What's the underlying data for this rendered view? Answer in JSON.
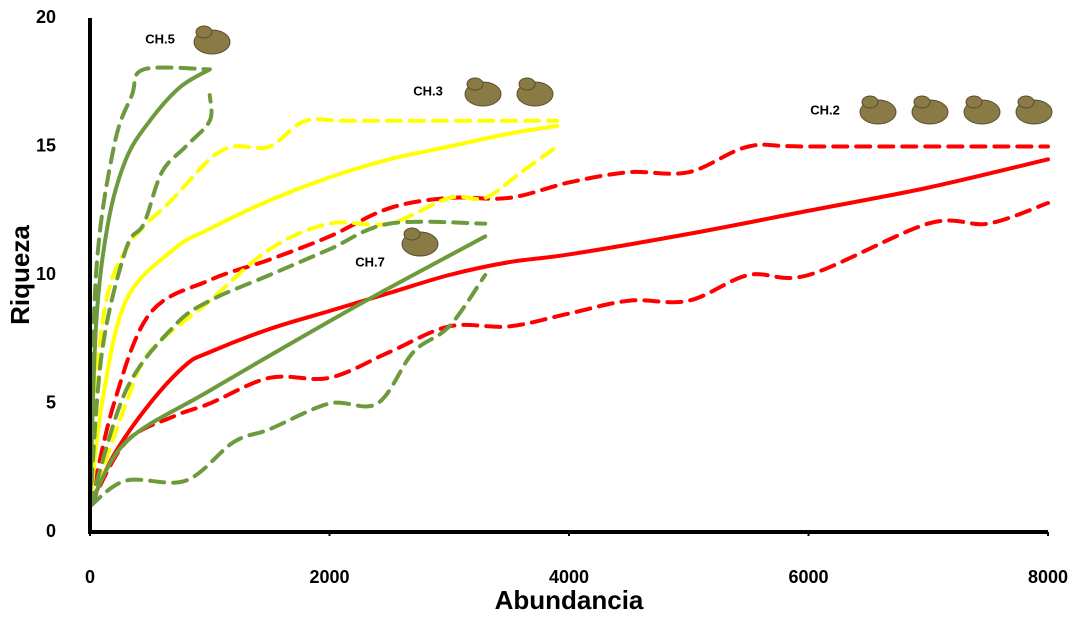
{
  "chart_data": {
    "type": "line",
    "x_label": "Abundancia",
    "y_label": "Riqueza",
    "annotations": [
      "CH.5",
      "CH.3",
      "CH.2",
      "CH.7"
    ],
    "xlim": [
      0,
      8000
    ],
    "xticks": [
      0,
      2000,
      4000,
      6000,
      8000
    ],
    "ylim": [
      0,
      20
    ],
    "yticks": [
      0,
      5,
      10,
      15,
      20
    ],
    "grid": false,
    "series": [
      {
        "color": "#ff0000",
        "dash": false,
        "x": [
          0,
          200,
          500,
          800,
          1000,
          1500,
          2000,
          2500,
          3000,
          3500,
          4000,
          5000,
          6000,
          7000,
          8000
        ],
        "values": [
          1,
          3,
          5,
          6.5,
          7,
          7.9,
          8.6,
          9.3,
          10,
          10.5,
          10.8,
          11.6,
          12.5,
          13.4,
          14.5
        ]
      },
      {
        "color": "#ff0000",
        "dash": true,
        "x": [
          0,
          200,
          500,
          1000,
          1500,
          2000,
          2500,
          3000,
          3500,
          4000,
          4500,
          5000,
          5500,
          6000,
          8000
        ],
        "values": [
          1,
          5,
          8.5,
          9.8,
          10.6,
          11.5,
          12.6,
          13,
          13,
          13.6,
          14,
          14,
          15,
          15,
          15
        ]
      },
      {
        "color": "#ff0000",
        "dash": true,
        "x": [
          0,
          300,
          700,
          1000,
          1500,
          2000,
          2500,
          3000,
          3500,
          4000,
          4500,
          5000,
          5500,
          6000,
          7000,
          7500,
          8000
        ],
        "values": [
          1,
          3.5,
          4.5,
          5,
          6,
          6,
          7,
          8,
          8,
          8.5,
          9,
          9,
          10,
          10,
          12,
          12,
          12.8
        ]
      },
      {
        "color": "#ffff00",
        "dash": false,
        "x": [
          0,
          100,
          300,
          700,
          1000,
          1500,
          2000,
          2500,
          3000,
          3500,
          3900
        ],
        "values": [
          1,
          5,
          9,
          11,
          11.8,
          12.9,
          13.8,
          14.5,
          15,
          15.5,
          15.8
        ]
      },
      {
        "color": "#ffff00",
        "dash": true,
        "x": [
          0,
          100,
          300,
          700,
          1000,
          1200,
          1500,
          1800,
          2200,
          3900
        ],
        "values": [
          1,
          8,
          11,
          13,
          14.5,
          15,
          15,
          16,
          16,
          16
        ]
      },
      {
        "color": "#ffff00",
        "dash": true,
        "x": [
          0,
          300,
          500,
          1000,
          1500,
          2000,
          2500,
          3000,
          3300,
          3600,
          3900
        ],
        "values": [
          1,
          5,
          7,
          9,
          11,
          12,
          12,
          13,
          13,
          14,
          15
        ]
      },
      {
        "color": "#6e9a3e",
        "dash": false,
        "x": [
          0,
          50,
          150,
          300,
          500,
          750,
          1000
        ],
        "values": [
          1,
          8,
          12,
          14.5,
          16,
          17.3,
          18
        ]
      },
      {
        "color": "#6e9a3e",
        "dash": true,
        "x": [
          0,
          50,
          200,
          350,
          450,
          1000
        ],
        "values": [
          1,
          10,
          15,
          17,
          18,
          18
        ]
      },
      {
        "color": "#6e9a3e",
        "dash": true,
        "x": [
          0,
          100,
          300,
          450,
          600,
          800,
          1000,
          1000
        ],
        "values": [
          1,
          7,
          11,
          12,
          14,
          15,
          16,
          17
        ]
      },
      {
        "color": "#6e9a3e",
        "dash": false,
        "x": [
          0,
          300,
          1000,
          2000,
          2500,
          3300
        ],
        "values": [
          1,
          3.5,
          5.5,
          8.2,
          9.5,
          11.5
        ]
      },
      {
        "color": "#6e9a3e",
        "dash": true,
        "x": [
          0,
          300,
          700,
          1000,
          1500,
          2000,
          2500,
          3300
        ],
        "values": [
          1,
          5.5,
          8,
          9,
          10,
          11,
          12,
          12
        ]
      },
      {
        "color": "#6e9a3e",
        "dash": true,
        "x": [
          0,
          300,
          800,
          1200,
          1500,
          2000,
          2400,
          2700,
          3000,
          3300
        ],
        "values": [
          1,
          2,
          2,
          3.5,
          4,
          5,
          5,
          7,
          8,
          10
        ]
      }
    ]
  }
}
